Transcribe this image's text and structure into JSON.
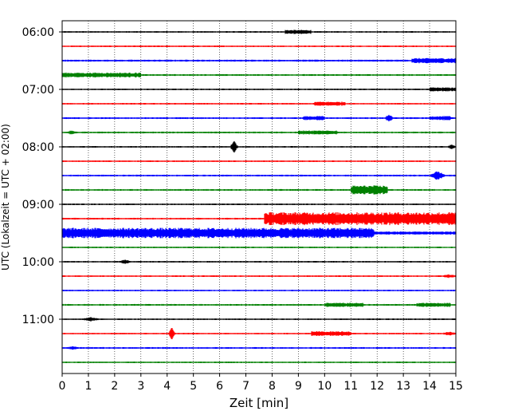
{
  "chart_data": {
    "type": "line",
    "xlabel": "Zeit  [min]",
    "ylabel": "UTC (Lokalzeit = UTC + 02:00)",
    "xlim": [
      0,
      15
    ],
    "x_ticks": [
      0,
      1,
      2,
      3,
      4,
      5,
      6,
      7,
      8,
      9,
      10,
      11,
      12,
      13,
      14,
      15
    ],
    "y_ticks": [
      {
        "label": "06:00",
        "trace": 0
      },
      {
        "label": "07:00",
        "trace": 4
      },
      {
        "label": "08:00",
        "trace": 8
      },
      {
        "label": "09:00",
        "trace": 12
      },
      {
        "label": "10:00",
        "trace": 16
      },
      {
        "label": "11:00",
        "trace": 20
      }
    ],
    "grid": "vertical dotted at each minute",
    "colors": [
      "#000000",
      "#ff0000",
      "#0000ff",
      "#008000"
    ],
    "traces": [
      {
        "time": "06:00",
        "color": "#000000",
        "base": 1.0,
        "events": [
          {
            "start": 8.5,
            "end": 9.5,
            "amp": 1.6
          }
        ]
      },
      {
        "time": "06:15",
        "color": "#ff0000",
        "base": 1.0,
        "events": []
      },
      {
        "time": "06:30",
        "color": "#0000ff",
        "base": 1.2,
        "events": [
          {
            "start": 13.3,
            "end": 15.0,
            "amp": 2.0
          }
        ]
      },
      {
        "time": "06:45",
        "color": "#008000",
        "base": 1.1,
        "events": [
          {
            "start": 0.0,
            "end": 3.0,
            "amp": 2.0
          }
        ]
      },
      {
        "time": "07:00",
        "color": "#000000",
        "base": 1.0,
        "events": [
          {
            "start": 14.0,
            "end": 15.0,
            "amp": 1.5
          }
        ]
      },
      {
        "time": "07:15",
        "color": "#ff0000",
        "base": 1.0,
        "events": [
          {
            "start": 9.6,
            "end": 10.8,
            "amp": 1.6
          }
        ]
      },
      {
        "time": "07:30",
        "color": "#0000ff",
        "base": 1.1,
        "events": [
          {
            "start": 9.2,
            "end": 10.0,
            "amp": 1.5
          },
          {
            "start": 12.3,
            "end": 12.6,
            "amp": 4.5
          },
          {
            "start": 14.0,
            "end": 14.8,
            "amp": 1.5
          }
        ]
      },
      {
        "time": "07:45",
        "color": "#008000",
        "base": 1.1,
        "events": [
          {
            "start": 0.2,
            "end": 0.5,
            "amp": 2.0
          },
          {
            "start": 9.0,
            "end": 10.5,
            "amp": 1.5
          }
        ]
      },
      {
        "time": "08:00",
        "color": "#000000",
        "base": 1.0,
        "events": [
          {
            "start": 6.4,
            "end": 6.7,
            "amp": 6.5
          },
          {
            "start": 14.7,
            "end": 15.0,
            "amp": 2.5
          }
        ]
      },
      {
        "time": "08:15",
        "color": "#ff0000",
        "base": 1.0,
        "events": []
      },
      {
        "time": "08:30",
        "color": "#0000ff",
        "base": 1.1,
        "events": [
          {
            "start": 14.0,
            "end": 14.6,
            "amp": 5.0
          }
        ]
      },
      {
        "time": "08:45",
        "color": "#008000",
        "base": 1.1,
        "events": [
          {
            "start": 11.0,
            "end": 12.4,
            "amp": 4.5
          }
        ]
      },
      {
        "time": "09:00",
        "color": "#000000",
        "base": 1.0,
        "events": []
      },
      {
        "time": "09:15",
        "color": "#ff0000",
        "base": 1.1,
        "events": [
          {
            "start": 7.7,
            "end": 15.0,
            "amp": 7.0
          }
        ]
      },
      {
        "time": "09:30",
        "color": "#0000ff",
        "base": 6.5,
        "events": [
          {
            "start": 11.9,
            "end": 15.0,
            "amp": -4.5
          }
        ]
      },
      {
        "time": "09:45",
        "color": "#008000",
        "base": 1.0,
        "events": []
      },
      {
        "time": "10:00",
        "color": "#000000",
        "base": 1.0,
        "events": [
          {
            "start": 2.2,
            "end": 2.6,
            "amp": 2.0
          }
        ]
      },
      {
        "time": "10:15",
        "color": "#ff0000",
        "base": 1.0,
        "events": [
          {
            "start": 14.5,
            "end": 15.0,
            "amp": 1.5
          }
        ]
      },
      {
        "time": "10:30",
        "color": "#0000ff",
        "base": 1.0,
        "events": []
      },
      {
        "time": "10:45",
        "color": "#008000",
        "base": 1.1,
        "events": [
          {
            "start": 10.0,
            "end": 11.5,
            "amp": 1.5
          },
          {
            "start": 13.5,
            "end": 14.8,
            "amp": 1.5
          }
        ]
      },
      {
        "time": "11:00",
        "color": "#000000",
        "base": 1.0,
        "events": [
          {
            "start": 0.8,
            "end": 1.4,
            "amp": 2.0
          }
        ]
      },
      {
        "time": "11:15",
        "color": "#ff0000",
        "base": 1.0,
        "events": [
          {
            "start": 4.05,
            "end": 4.3,
            "amp": 7.0
          },
          {
            "start": 9.5,
            "end": 11.0,
            "amp": 2.0
          },
          {
            "start": 14.5,
            "end": 15.0,
            "amp": 1.5
          }
        ]
      },
      {
        "time": "11:30",
        "color": "#0000ff",
        "base": 1.1,
        "events": [
          {
            "start": 0.2,
            "end": 0.6,
            "amp": 1.5
          }
        ]
      },
      {
        "time": "11:45",
        "color": "#008000",
        "base": 1.0,
        "events": []
      }
    ]
  }
}
